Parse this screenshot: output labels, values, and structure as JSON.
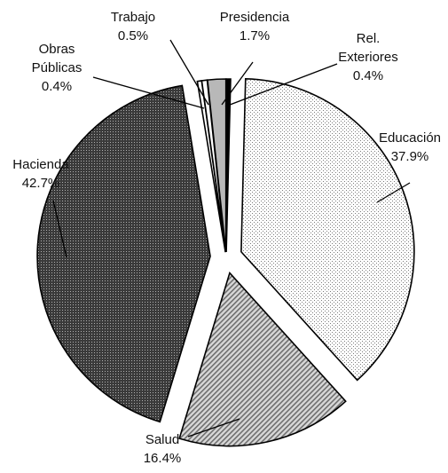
{
  "chart_data": {
    "type": "pie",
    "exploded": true,
    "labels_outside": true,
    "legend": "none",
    "slices": [
      {
        "name": "Rel. Exteriores",
        "name_lines": [
          "Rel.",
          "Exteriores"
        ],
        "value": 0.4,
        "value_label": "0.4%",
        "fill": "#000000",
        "pattern": "solid"
      },
      {
        "name": "Educación",
        "name_lines": [
          "Educación"
        ],
        "value": 37.9,
        "value_label": "37.9%",
        "fill": "#ffffff",
        "pattern": "light-dots"
      },
      {
        "name": "Salud",
        "name_lines": [
          "Salud"
        ],
        "value": 16.4,
        "value_label": "16.4%",
        "fill": "#bdbdbd",
        "pattern": "diagonal-hatch"
      },
      {
        "name": "Hacienda",
        "name_lines": [
          "Hacienda"
        ],
        "value": 42.7,
        "value_label": "42.7%",
        "fill": "#4a4a4a",
        "pattern": "dark-dots"
      },
      {
        "name": "Obras Públicas",
        "name_lines": [
          "Obras",
          "Públicas"
        ],
        "value": 0.4,
        "value_label": "0.4%",
        "fill": "#ffffff",
        "pattern": "solid"
      },
      {
        "name": "Trabajo",
        "name_lines": [
          "Trabajo"
        ],
        "value": 0.5,
        "value_label": "0.5%",
        "fill": "#ffffff",
        "pattern": "solid"
      },
      {
        "name": "Presidencia",
        "name_lines": [
          "Presidencia"
        ],
        "value": 1.7,
        "value_label": "1.7%",
        "fill": "#b8b8b8",
        "pattern": "solid"
      }
    ]
  }
}
